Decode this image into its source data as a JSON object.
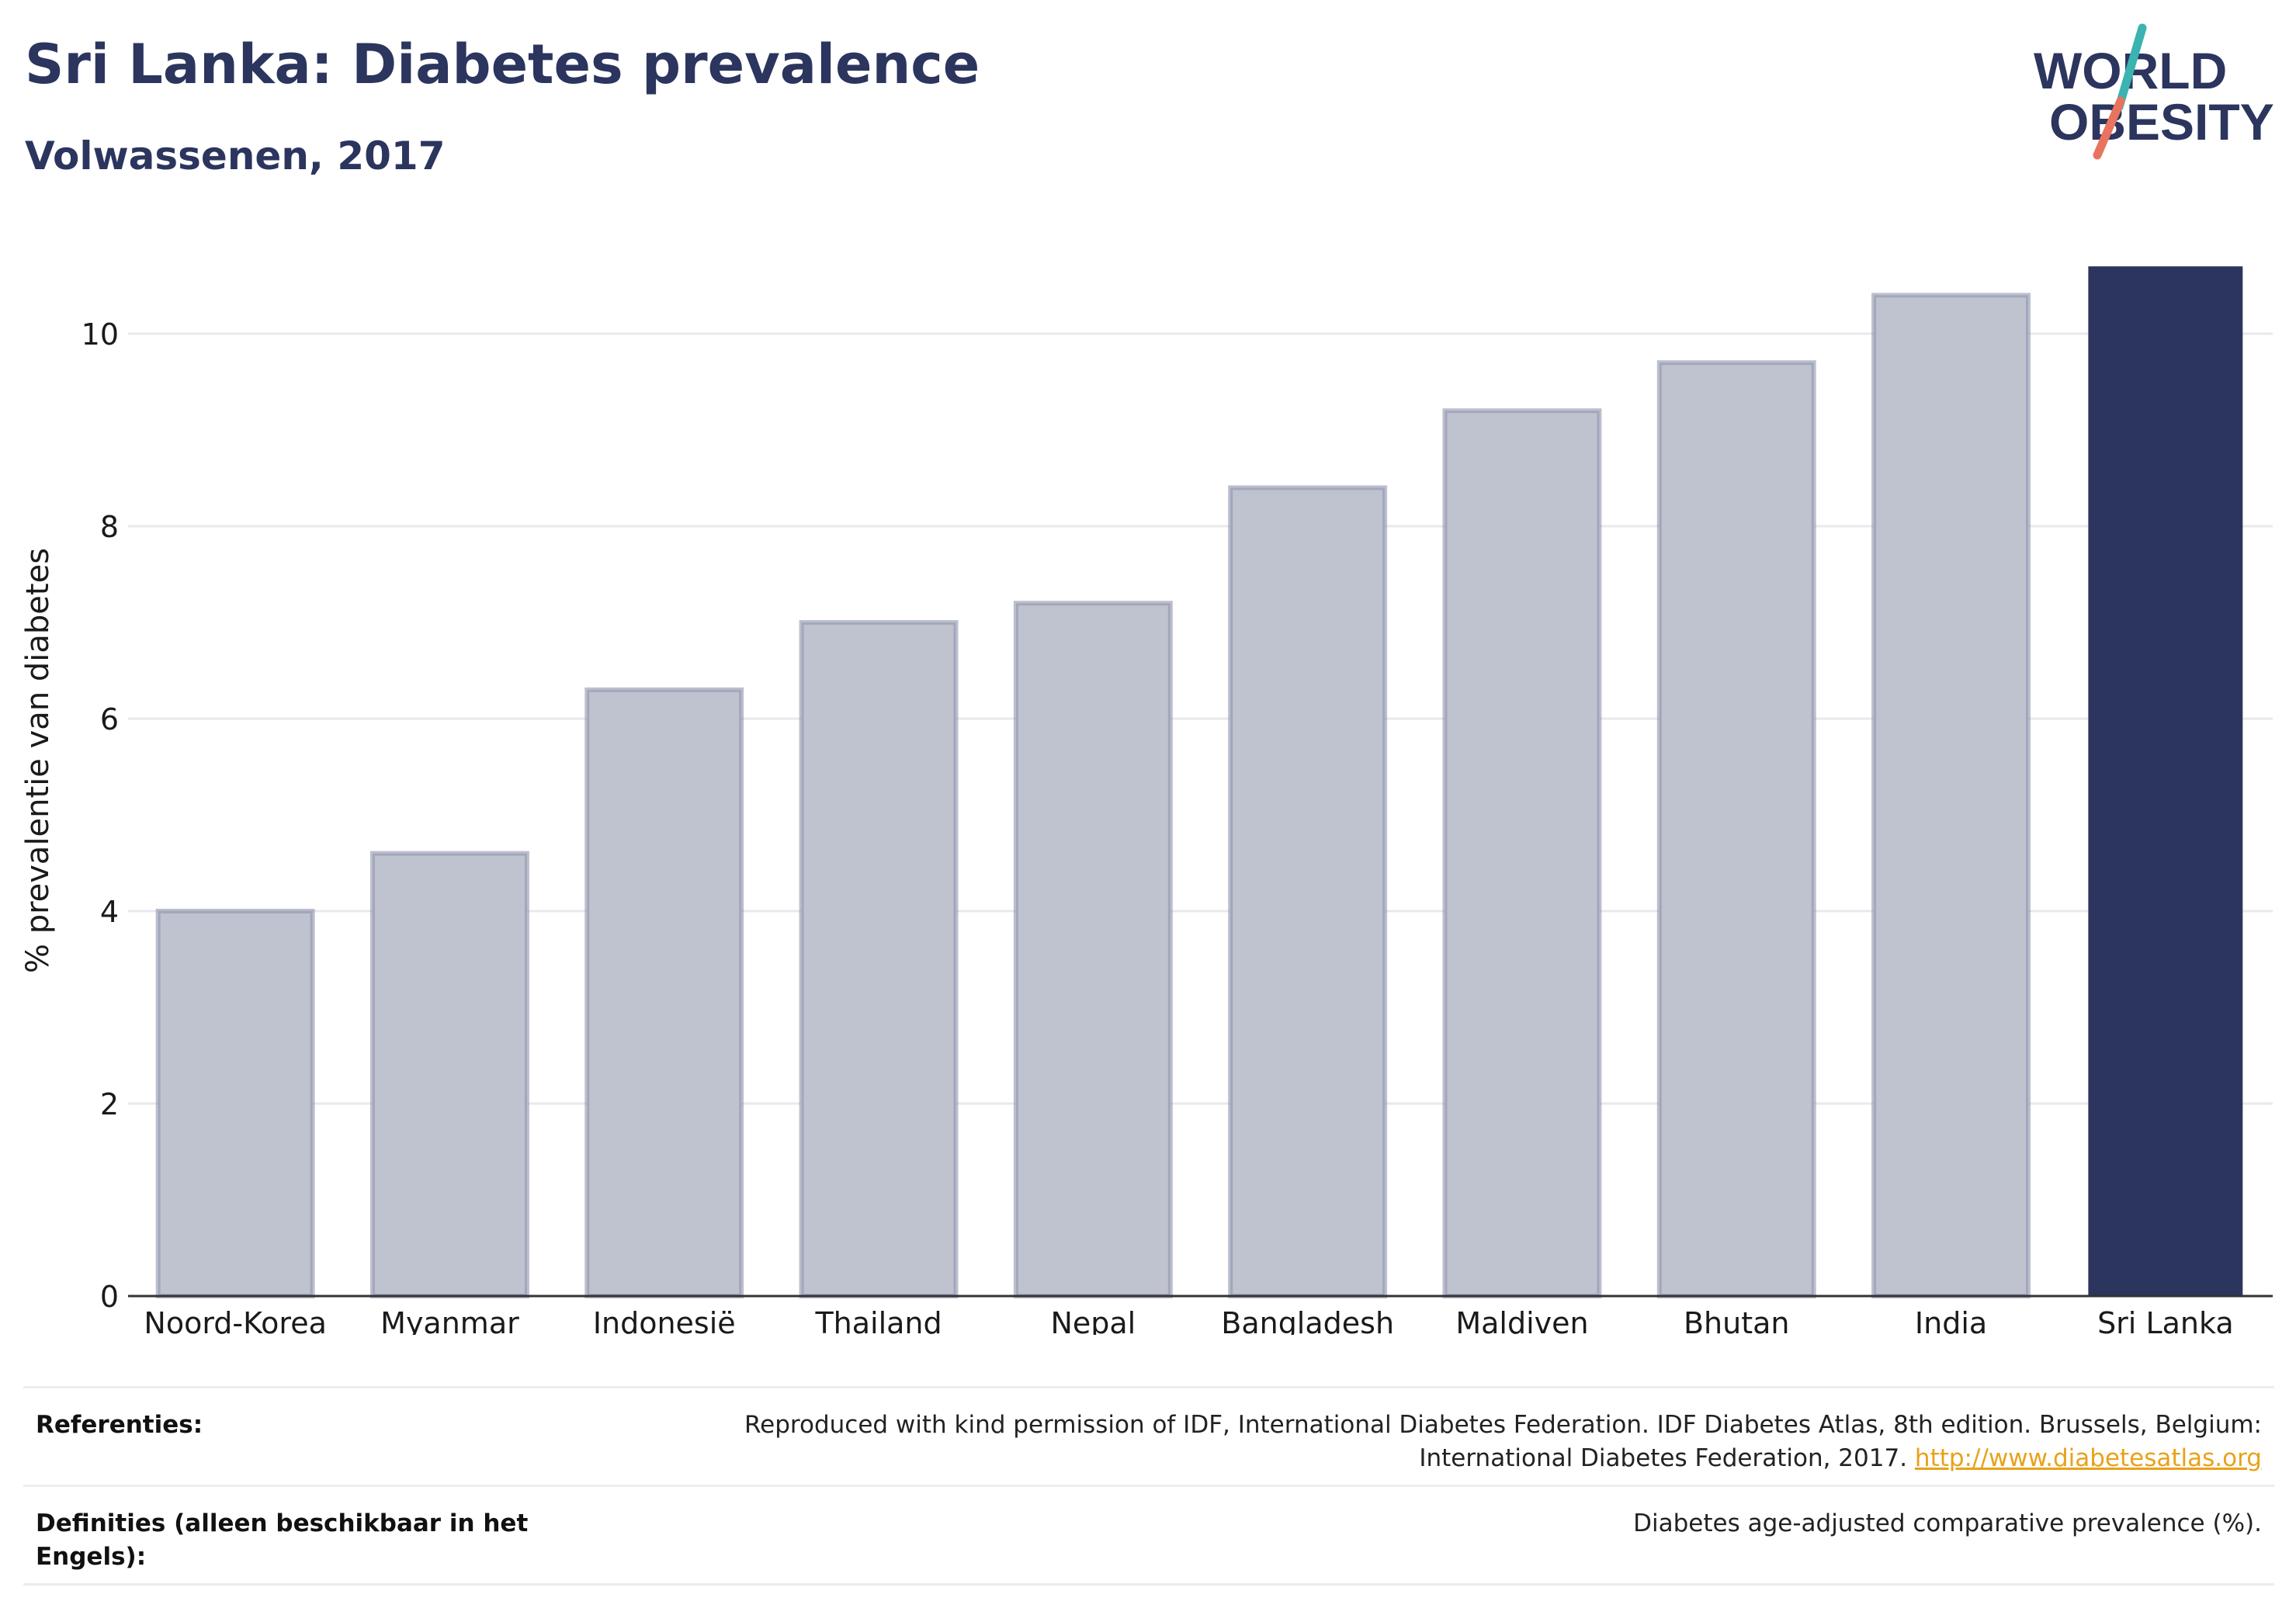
{
  "header": {
    "title": "Sri Lanka: Diabetes prevalence",
    "subtitle": "Volwassenen, 2017"
  },
  "logo": {
    "line1": "WORLD",
    "line2": "OBESITY",
    "colors": {
      "text": "#2b355e",
      "slash_top": "#3bb3b0",
      "slash_bottom": "#e8735f"
    }
  },
  "chart_data": {
    "type": "bar",
    "categories": [
      "Noord-Korea",
      "Myanmar",
      "Indonesië",
      "Thailand",
      "Nepal",
      "Bangladesh",
      "Maldiven",
      "Bhutan",
      "India",
      "Sri Lanka"
    ],
    "values": [
      4.0,
      4.6,
      6.3,
      7.0,
      7.2,
      8.4,
      9.2,
      9.7,
      10.4,
      10.7
    ],
    "highlight": "Sri Lanka",
    "ylabel": "% prevalentie van diabetes",
    "xlabel": "",
    "ylim": [
      0,
      11
    ],
    "yticks": [
      0,
      2,
      4,
      6,
      8,
      10
    ],
    "grid": true,
    "colors": {
      "bar": "#bfc2cf",
      "bar_edge": "#8f95ad",
      "highlight": "#2b355e",
      "grid": "#e8e8ee",
      "axis": "#333333"
    }
  },
  "footer": {
    "references_label": "Referenties:",
    "references_text_line1": "Reproduced with kind permission of IDF, International Diabetes Federation. IDF Diabetes Atlas, 8th edition. Brussels, Belgium:",
    "references_text_line2": "International Diabetes Federation, 2017.",
    "references_link": "http://www.diabetesatlas.org",
    "definitions_label": "Definities (alleen beschikbaar in het Engels):",
    "definitions_text": "Diabetes age-adjusted comparative prevalence (%)."
  }
}
